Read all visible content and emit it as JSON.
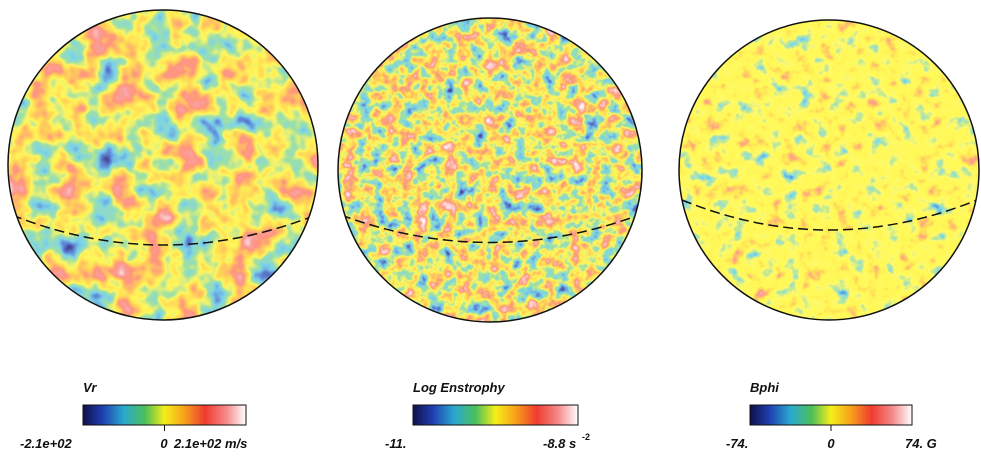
{
  "panels": [
    {
      "title": "Vr",
      "min_label": "-2.1e+02",
      "zero_label": "0",
      "max_label": "2.1e+02 m/s"
    },
    {
      "title": "Log Enstrophy",
      "min_label": "-11.",
      "max_label": "-8.8 s",
      "max_exponent": "-2"
    },
    {
      "title": "Bphi",
      "min_label": "-74.",
      "zero_label": "0",
      "max_label": "74. G"
    }
  ]
}
